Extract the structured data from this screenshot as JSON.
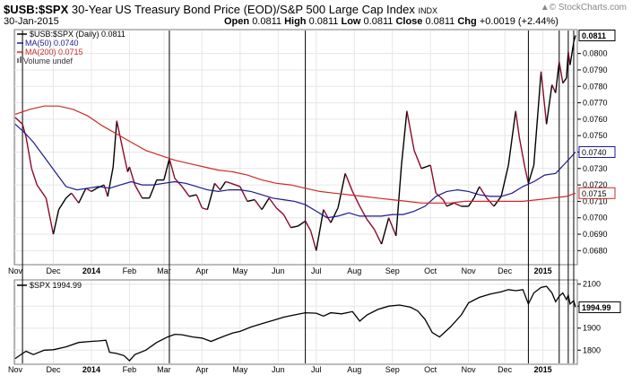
{
  "header": {
    "symbol": "$USB:$SPX",
    "description": "30-Year US Treasury Bond Price (EOD)/S&P 500 Large Cap Index",
    "exchange": "INDX",
    "date": "30-Jan-2015",
    "open_label": "Open",
    "open": "0.0811",
    "high_label": "High",
    "high": "0.0811",
    "low_label": "Low",
    "low": "0.0811",
    "close_label": "Close",
    "close": "0.0811",
    "chg_label": "Chg",
    "chg": "+0.0019 (+2.44%)",
    "brand": "© StockCharts.com",
    "brand_icon": "up-arrow-icon"
  },
  "legend": {
    "main": "$USB:$SPX (Daily) 0.0811",
    "ma50": "MA(50) 0.0740",
    "ma200": "MA(200) 0.0715",
    "volume": "Volume undef"
  },
  "colors": {
    "price": "#8b0a2a",
    "price_up": "#000000",
    "ma50": "#1a1a8c",
    "ma200": "#cc2a2a",
    "grid": "#e6e6e6",
    "vline": "#000000"
  },
  "chart_data": [
    {
      "type": "line",
      "title": "$USB:$SPX",
      "y_axis_side": "right",
      "ylim": [
        0.0672,
        0.0814
      ],
      "y_ticks": [
        "0.0680",
        "0.0690",
        "0.0700",
        "0.0710",
        "0.0720",
        "0.0730",
        "0.0740",
        "0.0750",
        "0.0760",
        "0.0770",
        "0.0780",
        "0.0790",
        "0.0800",
        "0.0811"
      ],
      "y_tick_values": [
        0.068,
        0.069,
        0.07,
        0.071,
        0.072,
        0.073,
        0.074,
        0.075,
        0.076,
        0.077,
        0.078,
        0.079,
        0.08
      ],
      "value_tags": [
        {
          "label": "0.0811",
          "value": 0.0811,
          "style": "last"
        },
        {
          "label": "0.0740",
          "value": 0.074,
          "style": "ma50"
        },
        {
          "label": "0.0715",
          "value": 0.0715,
          "style": "ma200"
        }
      ],
      "x_months": [
        "Nov",
        "Dec",
        "2014",
        "Feb",
        "Mar",
        "Apr",
        "May",
        "Jun",
        "Jul",
        "Aug",
        "Sep",
        "Oct",
        "Nov",
        "Dec",
        "2015"
      ],
      "month_starts": [
        0,
        21,
        42,
        63,
        82,
        103,
        124,
        145,
        166,
        187,
        208,
        229,
        250,
        270,
        291
      ],
      "bold_months": [
        "2014",
        "2015"
      ],
      "n_days": 310,
      "spike_days": [
        4,
        85,
        160,
        283,
        300,
        305,
        308
      ],
      "series": [
        {
          "name": "$USB:$SPX (Daily)",
          "key": "price",
          "days": [
            0,
            4,
            6,
            9,
            12,
            17,
            21,
            24,
            28,
            31,
            35,
            39,
            42,
            45,
            49,
            51,
            54,
            56,
            60,
            62,
            63,
            66,
            70,
            74,
            78,
            82,
            85,
            88,
            92,
            96,
            100,
            103,
            106,
            110,
            113,
            116,
            119,
            124,
            128,
            132,
            136,
            140,
            144,
            148,
            152,
            156,
            160,
            163,
            166,
            170,
            174,
            178,
            182,
            186,
            190,
            194,
            198,
            202,
            206,
            210,
            213,
            216,
            220,
            224,
            229,
            232,
            236,
            238,
            242,
            246,
            250,
            253,
            256,
            260,
            264,
            268,
            272,
            276,
            278,
            281,
            283,
            286,
            290,
            293,
            296,
            298,
            300,
            302,
            304,
            305,
            306,
            308,
            309
          ],
          "values": [
            0.0761,
            0.0757,
            0.0749,
            0.073,
            0.072,
            0.0712,
            0.069,
            0.0705,
            0.0712,
            0.0715,
            0.0709,
            0.0718,
            0.0716,
            0.0718,
            0.072,
            0.0713,
            0.0731,
            0.0759,
            0.0738,
            0.0728,
            0.0731,
            0.072,
            0.0712,
            0.0712,
            0.0723,
            0.0723,
            0.0736,
            0.0724,
            0.0719,
            0.0713,
            0.0714,
            0.0706,
            0.0705,
            0.0721,
            0.0717,
            0.0722,
            0.0721,
            0.0719,
            0.071,
            0.0711,
            0.0705,
            0.0712,
            0.0706,
            0.0702,
            0.0694,
            0.0695,
            0.0698,
            0.0692,
            0.068,
            0.0705,
            0.0697,
            0.0706,
            0.0727,
            0.0716,
            0.0707,
            0.0699,
            0.0693,
            0.0684,
            0.07,
            0.0689,
            0.0732,
            0.0765,
            0.0741,
            0.073,
            0.0732,
            0.0715,
            0.0711,
            0.0707,
            0.0709,
            0.0707,
            0.0707,
            0.0712,
            0.0719,
            0.0712,
            0.0707,
            0.0713,
            0.0732,
            0.0765,
            0.0749,
            0.0731,
            0.0721,
            0.0732,
            0.0789,
            0.0757,
            0.0781,
            0.0776,
            0.0795,
            0.0782,
            0.0785,
            0.0801,
            0.0793,
            0.0807,
            0.0811
          ]
        },
        {
          "name": "MA(50)",
          "key": "ma50",
          "days": [
            0,
            5,
            10,
            16,
            22,
            28,
            34,
            40,
            46,
            52,
            58,
            64,
            70,
            76,
            82,
            88,
            94,
            100,
            106,
            112,
            118,
            124,
            130,
            136,
            142,
            148,
            154,
            160,
            166,
            172,
            178,
            184,
            190,
            196,
            202,
            208,
            214,
            220,
            226,
            232,
            238,
            244,
            250,
            256,
            262,
            268,
            274,
            280,
            286,
            292,
            298,
            304,
            309
          ],
          "values": [
            0.0757,
            0.0752,
            0.0746,
            0.0737,
            0.0728,
            0.0719,
            0.0717,
            0.0718,
            0.0719,
            0.0718,
            0.072,
            0.0722,
            0.072,
            0.072,
            0.0721,
            0.0722,
            0.0721,
            0.0719,
            0.0717,
            0.0716,
            0.0717,
            0.0717,
            0.0716,
            0.0714,
            0.0712,
            0.0711,
            0.071,
            0.0708,
            0.0704,
            0.07,
            0.0701,
            0.0703,
            0.0701,
            0.0701,
            0.0701,
            0.0702,
            0.0702,
            0.0704,
            0.0707,
            0.0713,
            0.0716,
            0.0717,
            0.0716,
            0.0714,
            0.0713,
            0.0713,
            0.0715,
            0.0719,
            0.0722,
            0.0726,
            0.0727,
            0.0734,
            0.074
          ]
        },
        {
          "name": "MA(200)",
          "key": "ma200",
          "days": [
            0,
            8,
            16,
            24,
            32,
            40,
            48,
            56,
            64,
            72,
            80,
            88,
            96,
            104,
            112,
            120,
            128,
            136,
            144,
            152,
            160,
            168,
            176,
            184,
            192,
            200,
            208,
            216,
            224,
            232,
            240,
            248,
            256,
            264,
            272,
            280,
            288,
            296,
            304,
            309
          ],
          "values": [
            0.0763,
            0.0766,
            0.0768,
            0.0768,
            0.0766,
            0.0762,
            0.0756,
            0.0751,
            0.0746,
            0.0741,
            0.0738,
            0.0735,
            0.0733,
            0.0731,
            0.0729,
            0.0728,
            0.0726,
            0.0723,
            0.0721,
            0.072,
            0.0718,
            0.0716,
            0.0715,
            0.0714,
            0.0713,
            0.0712,
            0.0711,
            0.071,
            0.0709,
            0.0709,
            0.0709,
            0.071,
            0.071,
            0.071,
            0.071,
            0.071,
            0.0711,
            0.0712,
            0.0713,
            0.0715
          ]
        }
      ]
    },
    {
      "type": "line",
      "title": "$SPX 1994.99",
      "y_axis_side": "right",
      "ylim": [
        1740,
        2115
      ],
      "y_ticks": [
        "1800",
        "1900",
        "2000",
        "2100"
      ],
      "y_tick_values": [
        1800,
        1900,
        2000,
        2100
      ],
      "value_tags": [
        {
          "label": "1994.99",
          "value": 1994.99,
          "style": "last"
        }
      ],
      "series": [
        {
          "name": "$SPX",
          "key": "spx",
          "days": [
            0,
            4,
            6,
            10,
            16,
            21,
            28,
            35,
            42,
            46,
            50,
            52,
            56,
            60,
            63,
            66,
            72,
            78,
            84,
            88,
            92,
            98,
            103,
            108,
            114,
            120,
            124,
            130,
            136,
            142,
            148,
            154,
            160,
            166,
            170,
            174,
            180,
            186,
            190,
            194,
            200,
            206,
            212,
            218,
            222,
            226,
            230,
            234,
            240,
            246,
            250,
            256,
            262,
            268,
            272,
            276,
            280,
            283,
            286,
            290,
            293,
            296,
            298,
            300,
            302,
            304,
            305,
            306,
            308,
            309
          ],
          "values": [
            1762,
            1785,
            1795,
            1780,
            1800,
            1802,
            1815,
            1835,
            1840,
            1842,
            1845,
            1790,
            1785,
            1775,
            1752,
            1780,
            1800,
            1835,
            1860,
            1872,
            1870,
            1860,
            1855,
            1840,
            1860,
            1878,
            1885,
            1905,
            1920,
            1935,
            1950,
            1960,
            1970,
            1968,
            1955,
            1970,
            1965,
            1975,
            1932,
            1960,
            1985,
            2000,
            2005,
            1995,
            1978,
            1940,
            1880,
            1860,
            1905,
            1960,
            2015,
            2040,
            2055,
            2065,
            2075,
            2070,
            2075,
            2010,
            2060,
            2085,
            2090,
            2060,
            2020,
            2045,
            2060,
            2030,
            2050,
            2010,
            2025,
            1995
          ]
        }
      ]
    }
  ]
}
